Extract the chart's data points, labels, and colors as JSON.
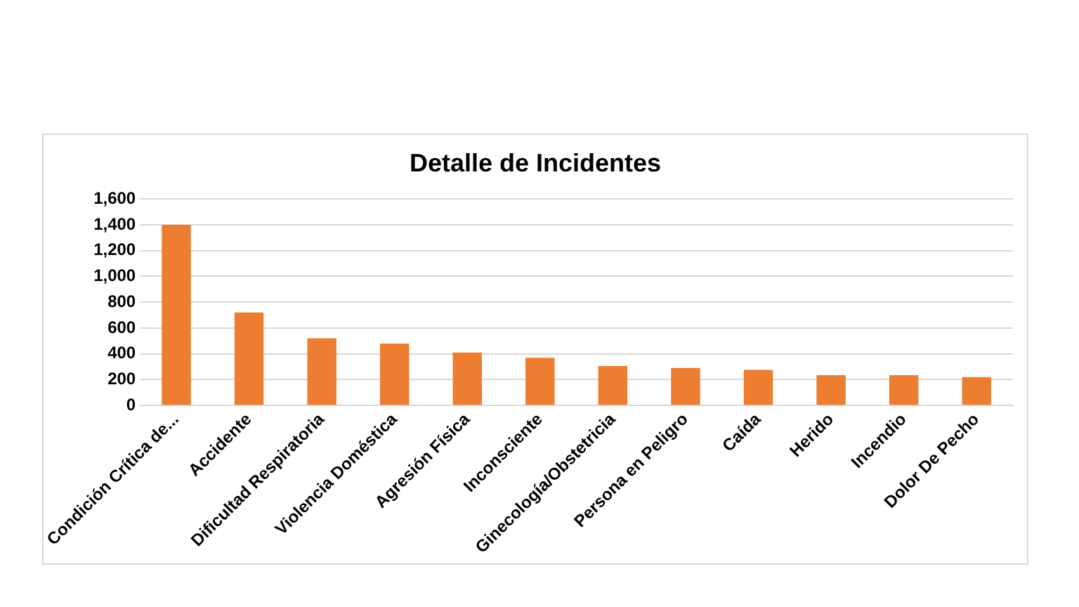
{
  "chart_data": {
    "type": "bar",
    "title": "Detalle de Incidentes",
    "categories": [
      "Condición Crítica de...",
      "Accidente",
      "Dificultad Respiratoria",
      "Violencia Doméstica",
      "Agresión Física",
      "Inconsciente",
      "Ginecología/Obstetricia",
      "Persona en Peligro",
      "Caída",
      "Herido",
      "Incendio",
      "Dolor De Pecho"
    ],
    "values": [
      1400,
      720,
      520,
      480,
      410,
      370,
      305,
      290,
      275,
      235,
      235,
      220
    ],
    "color": "#ed7d31",
    "ylim": [
      0,
      1600
    ],
    "yticks": [
      {
        "value": 0,
        "label": "0"
      },
      {
        "value": 200,
        "label": "200"
      },
      {
        "value": 400,
        "label": "400"
      },
      {
        "value": 600,
        "label": "600"
      },
      {
        "value": 800,
        "label": "800"
      },
      {
        "value": 1000,
        "label": "1,000"
      },
      {
        "value": 1200,
        "label": "1,200"
      },
      {
        "value": 1400,
        "label": "1,400"
      },
      {
        "value": 1600,
        "label": "1,600"
      }
    ],
    "grid": "y"
  }
}
